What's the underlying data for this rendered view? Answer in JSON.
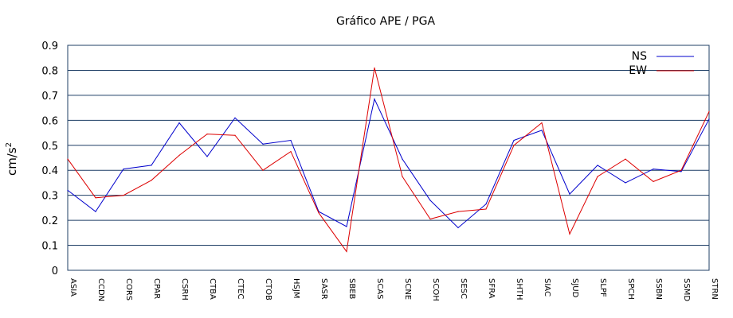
{
  "chart_data": {
    "type": "line",
    "title": "Gráfico  APE / PGA",
    "xlabel": "",
    "ylabel": "cm/s",
    "ylabel_sup": "2",
    "ylim": [
      0,
      0.9
    ],
    "yticks": [
      "0",
      "0.1",
      "0.2",
      "0.3",
      "0.4",
      "0.5",
      "0.6",
      "0.7",
      "0.8",
      "0.9"
    ],
    "grid": true,
    "legend_position": "top-right",
    "categories": [
      "ASIA",
      "CCDN",
      "CORS",
      "CPAR",
      "CSRH",
      "CTBA",
      "CTEC",
      "CTOB",
      "HSJM",
      "SASR",
      "SBEB",
      "SCAS",
      "SCNE",
      "SCOH",
      "SESC",
      "SFRA",
      "SHTH",
      "SIAC",
      "SJUD",
      "SLPF",
      "SPCH",
      "SSBN",
      "SSMD",
      "STRN"
    ],
    "series": [
      {
        "name": "NS",
        "color": "#0000cc",
        "values": [
          0.32,
          0.235,
          0.405,
          0.42,
          0.59,
          0.455,
          0.61,
          0.505,
          0.52,
          0.235,
          0.175,
          0.685,
          0.445,
          0.28,
          0.17,
          0.265,
          0.52,
          0.56,
          0.305,
          0.42,
          0.35,
          0.405,
          0.395,
          0.605
        ]
      },
      {
        "name": "EW",
        "color": "#dd0000",
        "values": [
          0.445,
          0.29,
          0.3,
          0.36,
          0.46,
          0.545,
          0.54,
          0.4,
          0.475,
          0.23,
          0.075,
          0.81,
          0.375,
          0.205,
          0.235,
          0.245,
          0.5,
          0.59,
          0.145,
          0.375,
          0.445,
          0.355,
          0.4,
          0.635
        ]
      }
    ]
  }
}
